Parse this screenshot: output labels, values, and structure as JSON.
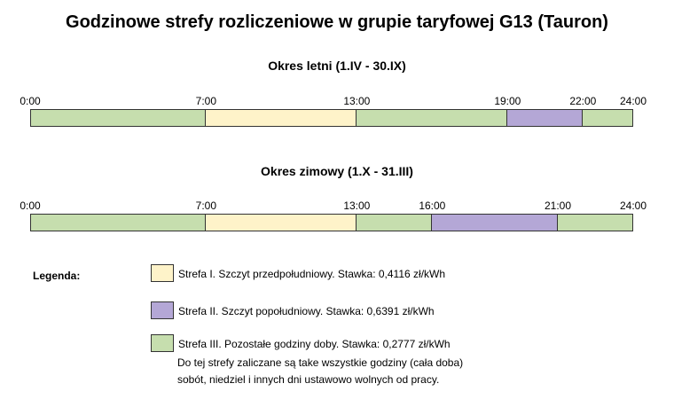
{
  "title": "Godzinowe strefy rozliczeniowe w grupie taryfowej G13 (Tauron)",
  "colors": {
    "zone1": "#fef3c9",
    "zone2": "#b4a7d6",
    "zone3": "#c6deae",
    "border": "#333333"
  },
  "periods": [
    {
      "title": "Okres letni (1.IV - 30.IX)",
      "ticks": [
        "0:00",
        "7:00",
        "13:00",
        "19:00",
        "22:00",
        "24:00"
      ],
      "segments": [
        {
          "start": 0,
          "end": 7,
          "zone": "zone3"
        },
        {
          "start": 7,
          "end": 13,
          "zone": "zone1"
        },
        {
          "start": 13,
          "end": 19,
          "zone": "zone3"
        },
        {
          "start": 19,
          "end": 22,
          "zone": "zone2"
        },
        {
          "start": 22,
          "end": 24,
          "zone": "zone3"
        }
      ]
    },
    {
      "title": "Okres zimowy (1.X - 31.III)",
      "ticks": [
        "0:00",
        "7:00",
        "13:00",
        "16:00",
        "21:00",
        "24:00"
      ],
      "segments": [
        {
          "start": 0,
          "end": 7,
          "zone": "zone3"
        },
        {
          "start": 7,
          "end": 13,
          "zone": "zone1"
        },
        {
          "start": 13,
          "end": 16,
          "zone": "zone3"
        },
        {
          "start": 16,
          "end": 21,
          "zone": "zone2"
        },
        {
          "start": 21,
          "end": 24,
          "zone": "zone3"
        }
      ]
    }
  ],
  "legend": {
    "heading": "Legenda:",
    "items": [
      {
        "zone": "zone1",
        "lines": [
          "Strefa I. Szczyt przedpołudniowy. Stawka: 0,4116 zł/kWh"
        ]
      },
      {
        "zone": "zone2",
        "lines": [
          "Strefa II. Szczyt popołudniowy. Stawka: 0,6391 zł/kWh"
        ]
      },
      {
        "zone": "zone3",
        "lines": [
          "Strefa III. Pozostałe godziny doby. Stawka: 0,2777 zł/kWh",
          "Do tej strefy zaliczane są take wszystkie godziny (cała doba)",
          "sobót, niedziel i innych dni ustawowo wolnych od pracy."
        ]
      }
    ]
  }
}
